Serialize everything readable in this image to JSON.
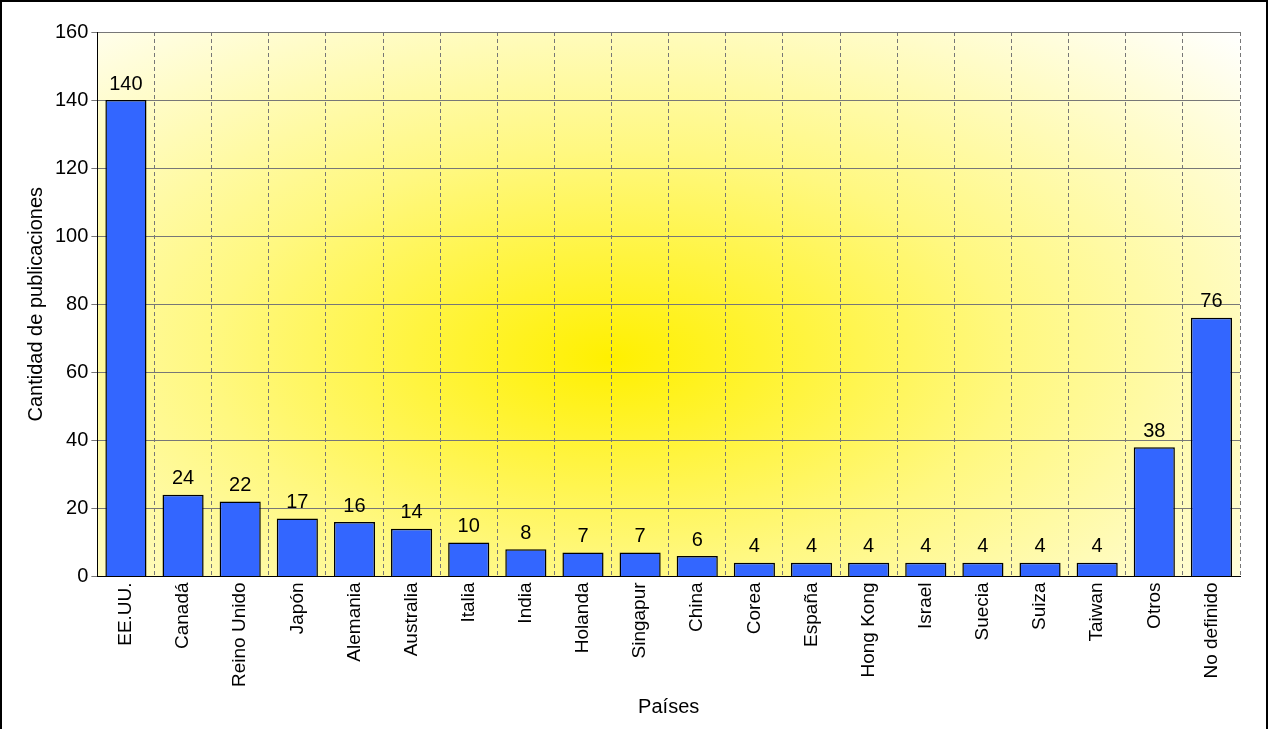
{
  "chart_data": {
    "type": "bar",
    "xlabel": "Países",
    "ylabel": "Cantidad de publicaciones",
    "categories": [
      "EE.UU.",
      "Canadá",
      "Reino Unido",
      "Japón",
      "Alemania",
      "Australia",
      "Italia",
      "India",
      "Holanda",
      "Singapur",
      "China",
      "Corea",
      "España",
      "Hong Kong",
      "Israel",
      "Suecia",
      "Suiza",
      "Taiwan",
      "Otros",
      "No definido"
    ],
    "values": [
      140,
      24,
      22,
      17,
      16,
      14,
      10,
      8,
      7,
      7,
      6,
      4,
      4,
      4,
      4,
      4,
      4,
      4,
      38,
      76
    ],
    "color": "#3366ff",
    "ylim": [
      0,
      160
    ],
    "yticks": [
      0,
      20,
      40,
      60,
      80,
      100,
      120,
      140,
      160
    ],
    "grid": true,
    "data_labels": true,
    "legend": false
  }
}
